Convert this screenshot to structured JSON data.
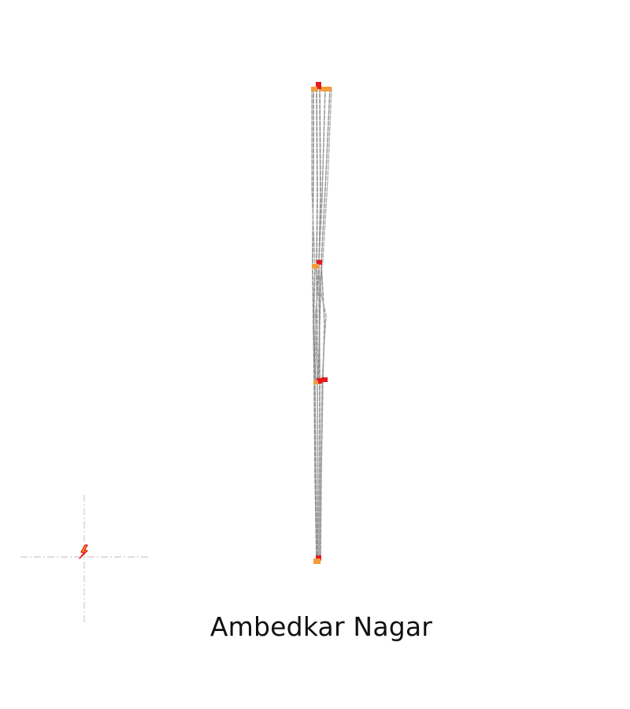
{
  "map": {
    "place_name": "Ambedkar Nagar",
    "colors": {
      "route_line": "#7f7f7f",
      "route_line_light": "#a9a9a9",
      "node_primary": "#e41a1c",
      "node_secondary": "#f39c3a",
      "marker_fill": "#f5d000",
      "crosshair": "#cfcfcf",
      "background": "#ffffff"
    },
    "icons": {
      "location_marker": "lightning-marker-icon",
      "crosshair": "crosshair-icon"
    }
  }
}
